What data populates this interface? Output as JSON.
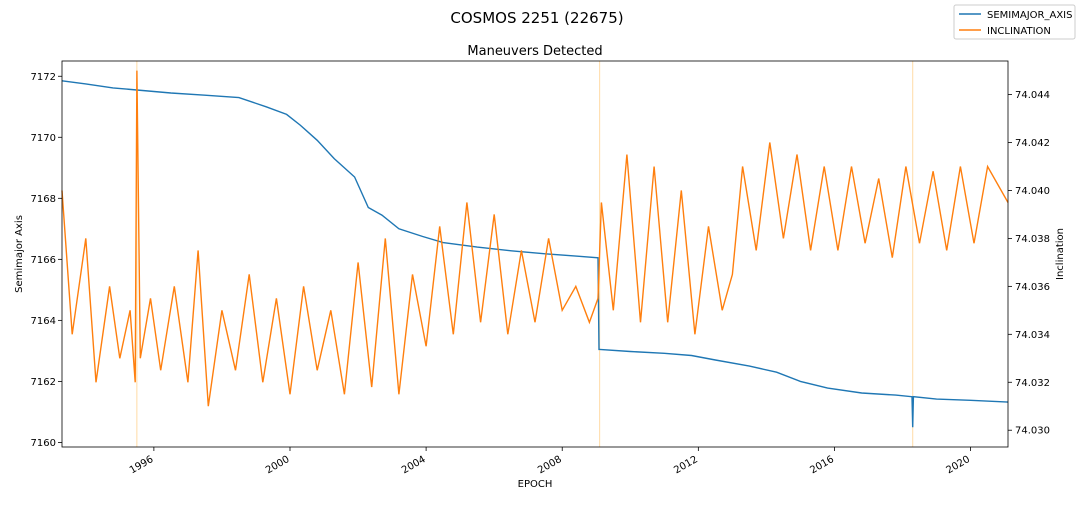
{
  "chart_data": {
    "type": "line",
    "suptitle": "COSMOS 2251 (22675)",
    "title": "Maneuvers Detected",
    "xlabel": "EPOCH",
    "ylabel_left": "Semimajor Axis",
    "ylabel_right": "Inclination",
    "xlim": [
      1993.3,
      2021.1
    ],
    "ylim_left": [
      7159.85,
      7172.5
    ],
    "ylim_right": [
      74.0293,
      74.0454
    ],
    "x_ticks": [
      1996,
      2000,
      2004,
      2008,
      2012,
      2016,
      2020
    ],
    "x_tick_labels": [
      "1996",
      "2000",
      "2004",
      "2008",
      "2012",
      "2016",
      "2020"
    ],
    "y_left_ticks": [
      7160,
      7162,
      7164,
      7166,
      7168,
      7170,
      7172
    ],
    "y_left_tick_labels": [
      "7160",
      "7162",
      "7164",
      "7166",
      "7168",
      "7170",
      "7172"
    ],
    "y_right_ticks": [
      74.03,
      74.032,
      74.034,
      74.036,
      74.038,
      74.04,
      74.042,
      74.044
    ],
    "y_right_tick_labels": [
      "74.030",
      "74.032",
      "74.034",
      "74.036",
      "74.038",
      "74.040",
      "74.042",
      "74.044"
    ],
    "maneuvers": [
      1995.5,
      2009.1,
      2018.3
    ],
    "legend_placement": "top-right",
    "grid": false,
    "series": [
      {
        "name": "SEMIMAJOR_AXIS",
        "axis": "left",
        "color": "#1f77b4",
        "x": [
          1993.3,
          1994.0,
          1994.8,
          1995.5,
          1996.5,
          1997.5,
          1998.5,
          1999.3,
          1999.9,
          2000.3,
          2000.8,
          2001.3,
          2001.9,
          2002.3,
          2002.7,
          2003.2,
          2003.9,
          2004.5,
          2005.5,
          2006.5,
          2007.5,
          2008.5,
          2009.05,
          2009.08,
          2009.1,
          2010.0,
          2011.0,
          2011.8,
          2012.5,
          2013.5,
          2014.3,
          2015.0,
          2015.8,
          2016.8,
          2017.8,
          2018.28,
          2018.3,
          2018.32,
          2019.0,
          2020.0,
          2021.1
        ],
        "y": [
          7171.85,
          7171.75,
          7171.62,
          7171.55,
          7171.45,
          7171.38,
          7171.3,
          7171.0,
          7170.75,
          7170.4,
          7169.9,
          7169.3,
          7168.7,
          7167.7,
          7167.45,
          7167.0,
          7166.75,
          7166.55,
          7166.4,
          7166.28,
          7166.18,
          7166.1,
          7166.05,
          7163.05,
          7163.05,
          7162.98,
          7162.92,
          7162.85,
          7162.7,
          7162.5,
          7162.3,
          7162.0,
          7161.78,
          7161.62,
          7161.55,
          7161.5,
          7160.5,
          7161.5,
          7161.42,
          7161.38,
          7161.32
        ]
      },
      {
        "name": "INCLINATION",
        "axis": "right",
        "color": "#ff7f0e",
        "x": [
          1993.3,
          1993.6,
          1994.0,
          1994.3,
          1994.7,
          1995.0,
          1995.3,
          1995.45,
          1995.5,
          1995.6,
          1995.9,
          1996.2,
          1996.6,
          1997.0,
          1997.3,
          1997.6,
          1998.0,
          1998.4,
          1998.8,
          1999.2,
          1999.6,
          2000.0,
          2000.4,
          2000.8,
          2001.2,
          2001.6,
          2002.0,
          2002.4,
          2002.8,
          2003.2,
          2003.6,
          2004.0,
          2004.4,
          2004.8,
          2005.2,
          2005.6,
          2006.0,
          2006.4,
          2006.8,
          2007.2,
          2007.6,
          2008.0,
          2008.4,
          2008.8,
          2009.05,
          2009.15,
          2009.5,
          2009.9,
          2010.3,
          2010.7,
          2011.1,
          2011.5,
          2011.9,
          2012.3,
          2012.7,
          2013.0,
          2013.3,
          2013.7,
          2014.1,
          2014.5,
          2014.9,
          2015.3,
          2015.7,
          2016.1,
          2016.5,
          2016.9,
          2017.3,
          2017.7,
          2018.1,
          2018.5,
          2018.9,
          2019.3,
          2019.7,
          2020.1,
          2020.5,
          2021.1
        ],
        "y": [
          74.04,
          74.034,
          74.038,
          74.032,
          74.036,
          74.033,
          74.035,
          74.032,
          74.045,
          74.033,
          74.0355,
          74.0325,
          74.036,
          74.032,
          74.0375,
          74.031,
          74.035,
          74.0325,
          74.0365,
          74.032,
          74.0355,
          74.0315,
          74.036,
          74.0325,
          74.035,
          74.0315,
          74.037,
          74.0318,
          74.038,
          74.0315,
          74.0365,
          74.0335,
          74.0385,
          74.034,
          74.0395,
          74.0345,
          74.039,
          74.034,
          74.0375,
          74.0345,
          74.038,
          74.035,
          74.036,
          74.0345,
          74.0355,
          74.0395,
          74.035,
          74.0415,
          74.0345,
          74.041,
          74.0345,
          74.04,
          74.034,
          74.0385,
          74.035,
          74.0365,
          74.041,
          74.0375,
          74.042,
          74.038,
          74.0415,
          74.0375,
          74.041,
          74.0375,
          74.041,
          74.0378,
          74.0405,
          74.0372,
          74.041,
          74.0378,
          74.0408,
          74.0375,
          74.041,
          74.0378,
          74.041,
          74.0395
        ]
      }
    ]
  }
}
